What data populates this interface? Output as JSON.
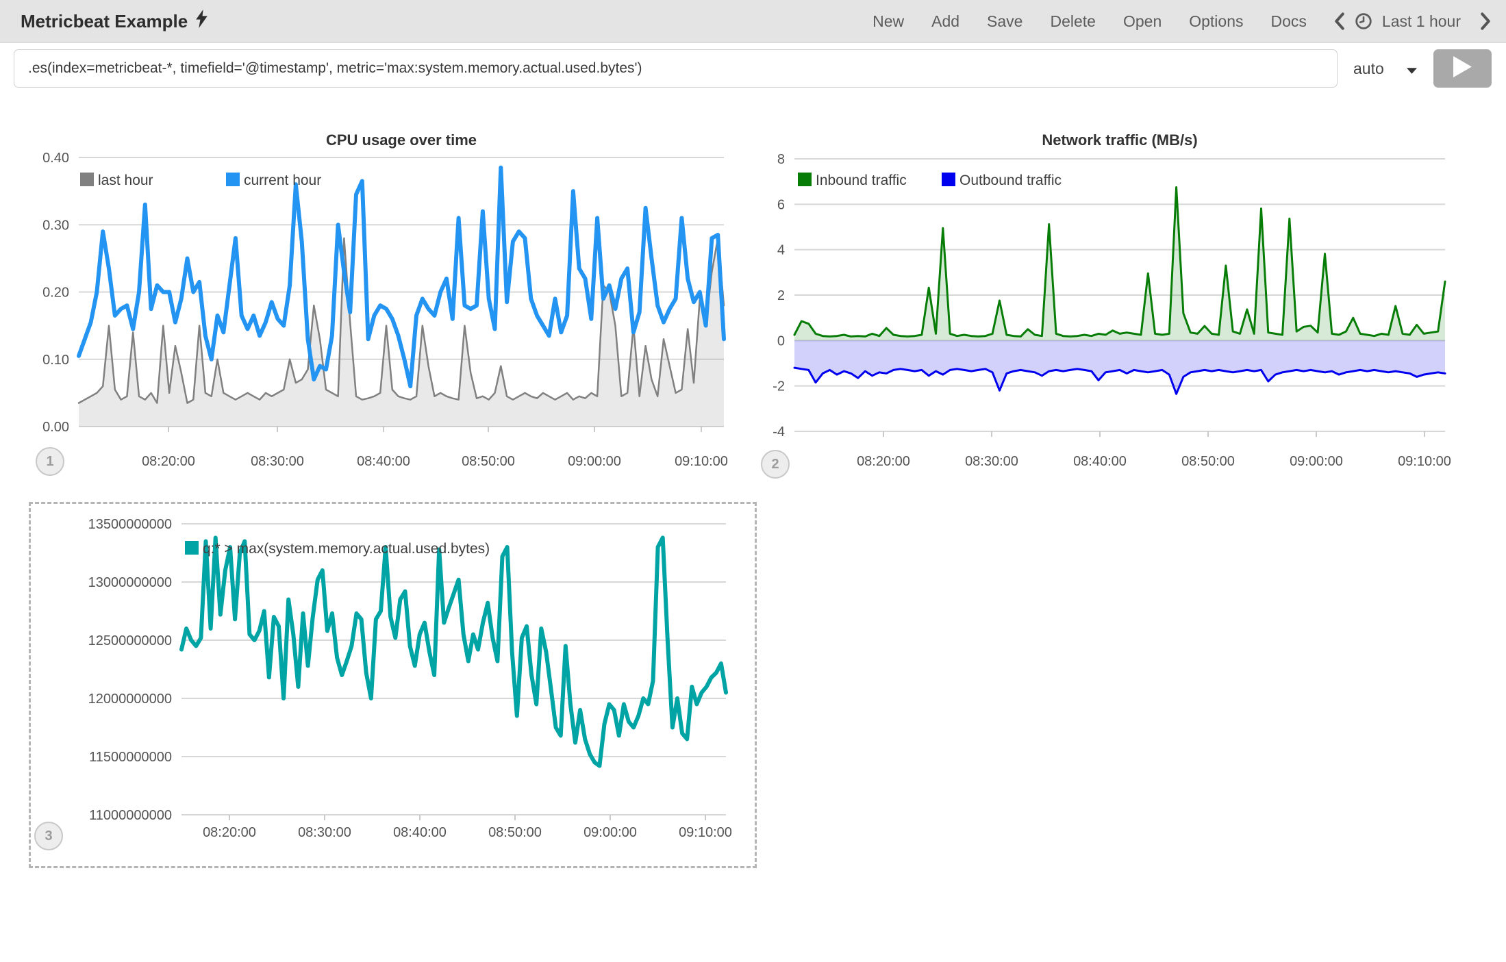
{
  "navbar": {
    "title": "Metricbeat Example",
    "menu": [
      "New",
      "Add",
      "Save",
      "Delete",
      "Open",
      "Options",
      "Docs"
    ],
    "time_picker": {
      "label": "Last 1 hour"
    }
  },
  "expression_bar": {
    "value": ".es(index=metricbeat-*, timefield='@timestamp', metric='max:system.memory.actual.used.bytes')",
    "interval": "auto"
  },
  "badges": [
    "1",
    "2",
    "3"
  ],
  "icons": {
    "bolt": "lightning-bolt",
    "prev": "chevron-left",
    "clock": "clock",
    "next": "chevron-right",
    "caret": "caret-down",
    "play": "play-triangle"
  },
  "colors": {
    "navbar_bg": "#e4e4e4",
    "current_hour_blue": "#2394f2",
    "last_hour_gray": "#808080",
    "inbound_green": "#077d07",
    "outbound_blue": "#0000ee",
    "memory_teal": "#01a4a4",
    "grid": "#d7d7d7",
    "play_button": "#a9a9a9"
  },
  "chart_data": [
    {
      "type": "line",
      "title": "CPU usage over time",
      "x_ticks": [
        "08:20:00",
        "08:30:00",
        "08:40:00",
        "08:50:00",
        "09:00:00",
        "09:10:00"
      ],
      "y_ticks": [
        "0.40",
        "0.30",
        "0.20",
        "0.10",
        "0.00"
      ],
      "ylim": [
        0,
        0.4
      ],
      "grid": true,
      "legend_position": "top-left",
      "series": [
        {
          "name": "last hour",
          "color": "#808080",
          "fill": "#9a9a9a",
          "fill_opacity": 0.22,
          "width": 2.5,
          "values": [
            0.035,
            0.04,
            0.045,
            0.05,
            0.06,
            0.15,
            0.055,
            0.04,
            0.045,
            0.14,
            0.045,
            0.04,
            0.05,
            0.035,
            0.15,
            0.05,
            0.12,
            0.08,
            0.035,
            0.04,
            0.15,
            0.05,
            0.045,
            0.1,
            0.05,
            0.045,
            0.04,
            0.045,
            0.05,
            0.045,
            0.04,
            0.05,
            0.045,
            0.05,
            0.055,
            0.1,
            0.065,
            0.07,
            0.085,
            0.18,
            0.13,
            0.055,
            0.05,
            0.045,
            0.28,
            0.155,
            0.045,
            0.04,
            0.042,
            0.045,
            0.05,
            0.15,
            0.055,
            0.045,
            0.042,
            0.04,
            0.045,
            0.15,
            0.09,
            0.045,
            0.05,
            0.045,
            0.042,
            0.04,
            0.15,
            0.08,
            0.042,
            0.045,
            0.04,
            0.05,
            0.09,
            0.045,
            0.04,
            0.045,
            0.05,
            0.045,
            0.042,
            0.05,
            0.045,
            0.04,
            0.045,
            0.05,
            0.04,
            0.045,
            0.042,
            0.05,
            0.045,
            0.21,
            0.2,
            0.15,
            0.045,
            0.05,
            0.15,
            0.045,
            0.12,
            0.07,
            0.045,
            0.13,
            0.09,
            0.05,
            0.055,
            0.145,
            0.065,
            0.19,
            0.15,
            0.23,
            0.28,
            0.18
          ]
        },
        {
          "name": "current hour",
          "color": "#2394f2",
          "width": 6,
          "values": [
            0.105,
            0.13,
            0.155,
            0.2,
            0.29,
            0.235,
            0.165,
            0.175,
            0.18,
            0.145,
            0.2,
            0.33,
            0.175,
            0.21,
            0.2,
            0.2,
            0.155,
            0.19,
            0.25,
            0.2,
            0.215,
            0.135,
            0.1,
            0.165,
            0.14,
            0.21,
            0.28,
            0.165,
            0.145,
            0.165,
            0.135,
            0.155,
            0.185,
            0.16,
            0.15,
            0.21,
            0.36,
            0.275,
            0.13,
            0.07,
            0.09,
            0.085,
            0.135,
            0.3,
            0.23,
            0.17,
            0.345,
            0.365,
            0.13,
            0.165,
            0.18,
            0.175,
            0.16,
            0.135,
            0.1,
            0.06,
            0.165,
            0.19,
            0.175,
            0.165,
            0.2,
            0.22,
            0.16,
            0.31,
            0.18,
            0.175,
            0.18,
            0.32,
            0.19,
            0.145,
            0.385,
            0.185,
            0.275,
            0.29,
            0.28,
            0.19,
            0.165,
            0.15,
            0.135,
            0.19,
            0.14,
            0.165,
            0.35,
            0.235,
            0.22,
            0.16,
            0.31,
            0.19,
            0.21,
            0.175,
            0.22,
            0.235,
            0.14,
            0.17,
            0.325,
            0.25,
            0.18,
            0.155,
            0.175,
            0.19,
            0.31,
            0.22,
            0.185,
            0.2,
            0.15,
            0.28,
            0.285,
            0.13
          ]
        }
      ]
    },
    {
      "type": "area",
      "title": "Network traffic (MB/s)",
      "x_ticks": [
        "08:20:00",
        "08:30:00",
        "08:40:00",
        "08:50:00",
        "09:00:00",
        "09:10:00"
      ],
      "y_ticks": [
        "8",
        "6",
        "4",
        "2",
        "0",
        "-2",
        "-4"
      ],
      "ylim": [
        -4,
        8
      ],
      "grid": true,
      "legend_position": "top-left",
      "series": [
        {
          "name": "Inbound traffic",
          "color": "#077d07",
          "fill": "#077d07",
          "fill_opacity": 0.16,
          "width": 3,
          "values": [
            0.25,
            0.85,
            0.74,
            0.3,
            0.2,
            0.18,
            0.2,
            0.25,
            0.18,
            0.2,
            0.18,
            0.3,
            0.2,
            0.55,
            0.25,
            0.2,
            0.18,
            0.2,
            0.25,
            2.33,
            0.3,
            4.95,
            0.3,
            0.2,
            0.25,
            0.2,
            0.18,
            0.2,
            0.3,
            1.76,
            0.25,
            0.2,
            0.18,
            0.5,
            0.25,
            0.2,
            5.12,
            0.3,
            0.2,
            0.18,
            0.2,
            0.25,
            0.2,
            0.3,
            0.25,
            0.44,
            0.3,
            0.35,
            0.3,
            0.25,
            2.96,
            0.3,
            0.25,
            0.3,
            6.75,
            1.2,
            0.35,
            0.3,
            0.64,
            0.3,
            0.25,
            3.3,
            0.4,
            0.3,
            1.37,
            0.3,
            5.81,
            0.35,
            0.3,
            0.25,
            5.37,
            0.4,
            0.6,
            0.65,
            0.35,
            3.82,
            0.3,
            0.25,
            0.4,
            1.0,
            0.3,
            0.25,
            0.2,
            0.3,
            0.25,
            1.52,
            0.3,
            0.25,
            0.69,
            0.3,
            0.35,
            0.4,
            2.6
          ]
        },
        {
          "name": "Outbound traffic",
          "color": "#0000ee",
          "fill": "#0000ee",
          "fill_opacity": 0.18,
          "width": 3,
          "values": [
            -1.2,
            -1.25,
            -1.3,
            -1.85,
            -1.45,
            -1.3,
            -1.5,
            -1.35,
            -1.45,
            -1.65,
            -1.35,
            -1.55,
            -1.4,
            -1.45,
            -1.3,
            -1.25,
            -1.3,
            -1.35,
            -1.3,
            -1.55,
            -1.35,
            -1.5,
            -1.3,
            -1.25,
            -1.3,
            -1.35,
            -1.3,
            -1.25,
            -1.4,
            -2.2,
            -1.45,
            -1.35,
            -1.3,
            -1.35,
            -1.4,
            -1.55,
            -1.35,
            -1.3,
            -1.35,
            -1.3,
            -1.25,
            -1.3,
            -1.35,
            -1.75,
            -1.4,
            -1.35,
            -1.3,
            -1.45,
            -1.3,
            -1.35,
            -1.4,
            -1.35,
            -1.3,
            -1.5,
            -2.35,
            -1.6,
            -1.4,
            -1.35,
            -1.3,
            -1.35,
            -1.3,
            -1.35,
            -1.4,
            -1.35,
            -1.3,
            -1.35,
            -1.3,
            -1.8,
            -1.5,
            -1.4,
            -1.35,
            -1.3,
            -1.35,
            -1.3,
            -1.35,
            -1.4,
            -1.35,
            -1.5,
            -1.4,
            -1.35,
            -1.3,
            -1.35,
            -1.3,
            -1.35,
            -1.4,
            -1.35,
            -1.4,
            -1.45,
            -1.6,
            -1.5,
            -1.45,
            -1.4,
            -1.45
          ]
        }
      ]
    },
    {
      "type": "line",
      "title": "",
      "x_ticks": [
        "08:20:00",
        "08:30:00",
        "08:40:00",
        "08:50:00",
        "09:00:00",
        "09:10:00"
      ],
      "y_ticks": [
        "13500000000",
        "13000000000",
        "12500000000",
        "12000000000",
        "11500000000",
        "11000000000"
      ],
      "ylim": [
        11000000000,
        13500000000
      ],
      "grid": true,
      "legend_position": "top-left",
      "series": [
        {
          "name": "q:* > max(system.memory.actual.used.bytes)",
          "color": "#01a4a4",
          "width": 6,
          "values": [
            12420000000,
            12600000000,
            12500000000,
            12450000000,
            12520000000,
            13350000000,
            12600000000,
            13380000000,
            12720000000,
            13100000000,
            13300000000,
            12680000000,
            13250000000,
            13350000000,
            12550000000,
            12500000000,
            12580000000,
            12750000000,
            12180000000,
            12700000000,
            12620000000,
            12000000000,
            12850000000,
            12550000000,
            12100000000,
            12730000000,
            12280000000,
            12700000000,
            13020000000,
            13100000000,
            12580000000,
            12730000000,
            12350000000,
            12200000000,
            12320000000,
            12450000000,
            12730000000,
            12680000000,
            12220000000,
            12000000000,
            12680000000,
            12750000000,
            13300000000,
            12700000000,
            12520000000,
            12850000000,
            12920000000,
            12450000000,
            12280000000,
            12550000000,
            12650000000,
            12400000000,
            12200000000,
            13280000000,
            12650000000,
            12780000000,
            12900000000,
            13020000000,
            12550000000,
            12320000000,
            12550000000,
            12420000000,
            12650000000,
            12820000000,
            12520000000,
            12320000000,
            13220000000,
            13300000000,
            12400000000,
            11850000000,
            12520000000,
            12620000000,
            12200000000,
            11950000000,
            12600000000,
            12400000000,
            12080000000,
            11750000000,
            11680000000,
            12450000000,
            11950000000,
            11620000000,
            11900000000,
            11650000000,
            11520000000,
            11450000000,
            11420000000,
            11780000000,
            11950000000,
            11900000000,
            11680000000,
            11950000000,
            11800000000,
            11750000000,
            11850000000,
            12000000000,
            11950000000,
            12150000000,
            13300000000,
            13380000000,
            12500000000,
            11750000000,
            12000000000,
            11700000000,
            11650000000,
            12100000000,
            11950000000,
            12050000000,
            12100000000,
            12180000000,
            12220000000,
            12300000000,
            12050000000
          ]
        }
      ]
    }
  ]
}
